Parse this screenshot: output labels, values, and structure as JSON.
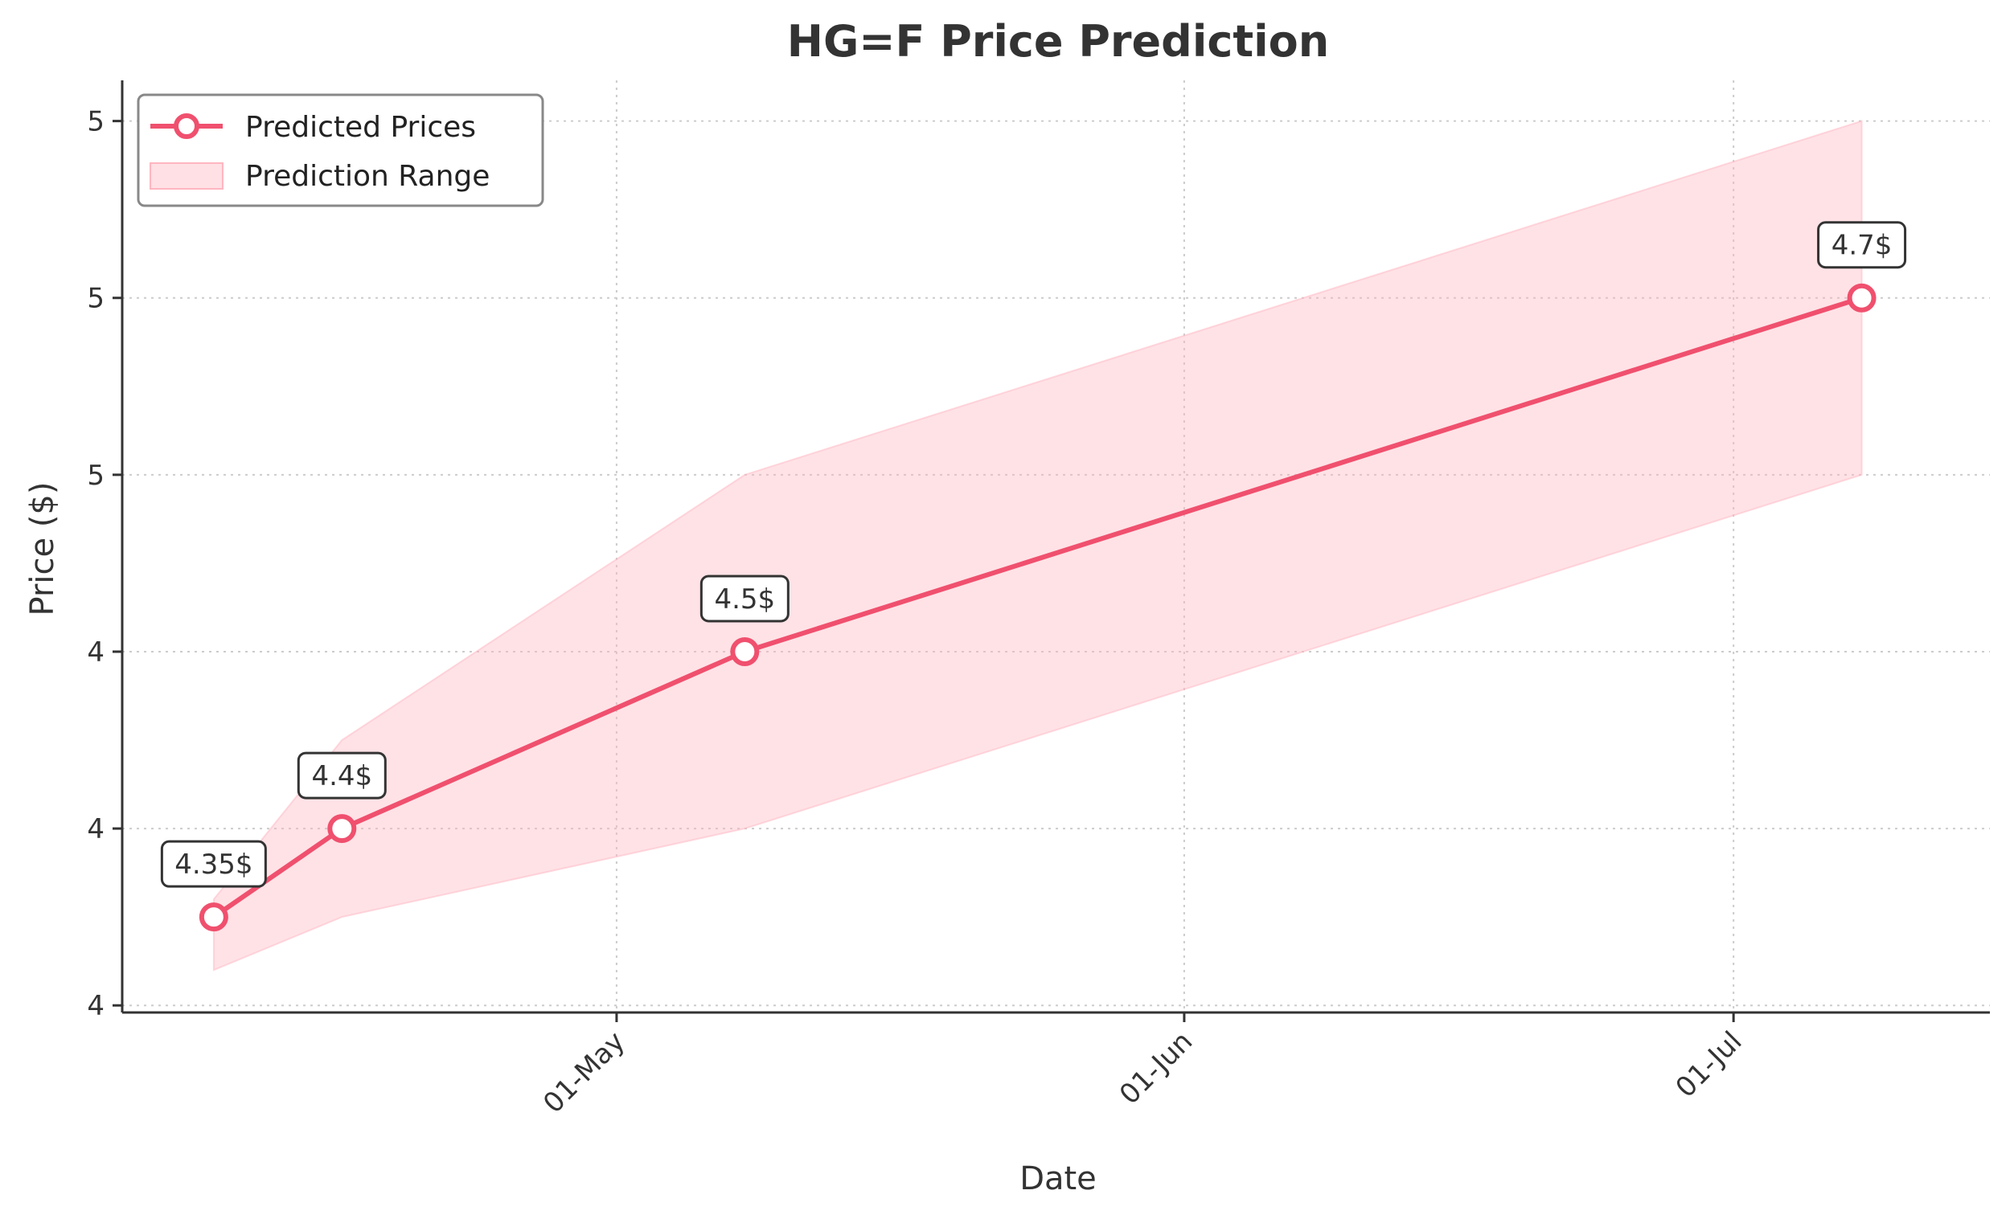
{
  "chart_data": {
    "type": "line",
    "title": "HG=F Price Prediction",
    "xlabel": "Date",
    "ylabel": "Price ($)",
    "x_dates": [
      "2024-04-09",
      "2024-04-16",
      "2024-05-08",
      "2024-07-08"
    ],
    "x_ticks": [
      {
        "date": "2024-05-01",
        "label": "01-May"
      },
      {
        "date": "2024-06-01",
        "label": "01-Jun"
      },
      {
        "date": "2024-07-01",
        "label": "01-Jul"
      }
    ],
    "xlim": [
      "2024-04-04",
      "2024-07-15"
    ],
    "y_ticks": [
      {
        "value": 4.3,
        "label": "4"
      },
      {
        "value": 4.4,
        "label": "4"
      },
      {
        "value": 4.5,
        "label": "4"
      },
      {
        "value": 4.6,
        "label": "5"
      },
      {
        "value": 4.7,
        "label": "5"
      },
      {
        "value": 4.8,
        "label": "5"
      }
    ],
    "ylim": [
      4.296,
      4.823
    ],
    "series": [
      {
        "name": "Predicted Prices",
        "color": "#f0506e",
        "values": [
          4.35,
          4.4,
          4.5,
          4.7
        ],
        "annotations": [
          "4.35$",
          "4.4$",
          "4.5$",
          "4.7$"
        ]
      },
      {
        "name": "Prediction Range",
        "color": "#ffb6c1",
        "lower": [
          4.32,
          4.35,
          4.4,
          4.6
        ],
        "upper": [
          4.36,
          4.45,
          4.6,
          4.8
        ]
      }
    ],
    "legend_position": "top-left",
    "grid": true
  }
}
